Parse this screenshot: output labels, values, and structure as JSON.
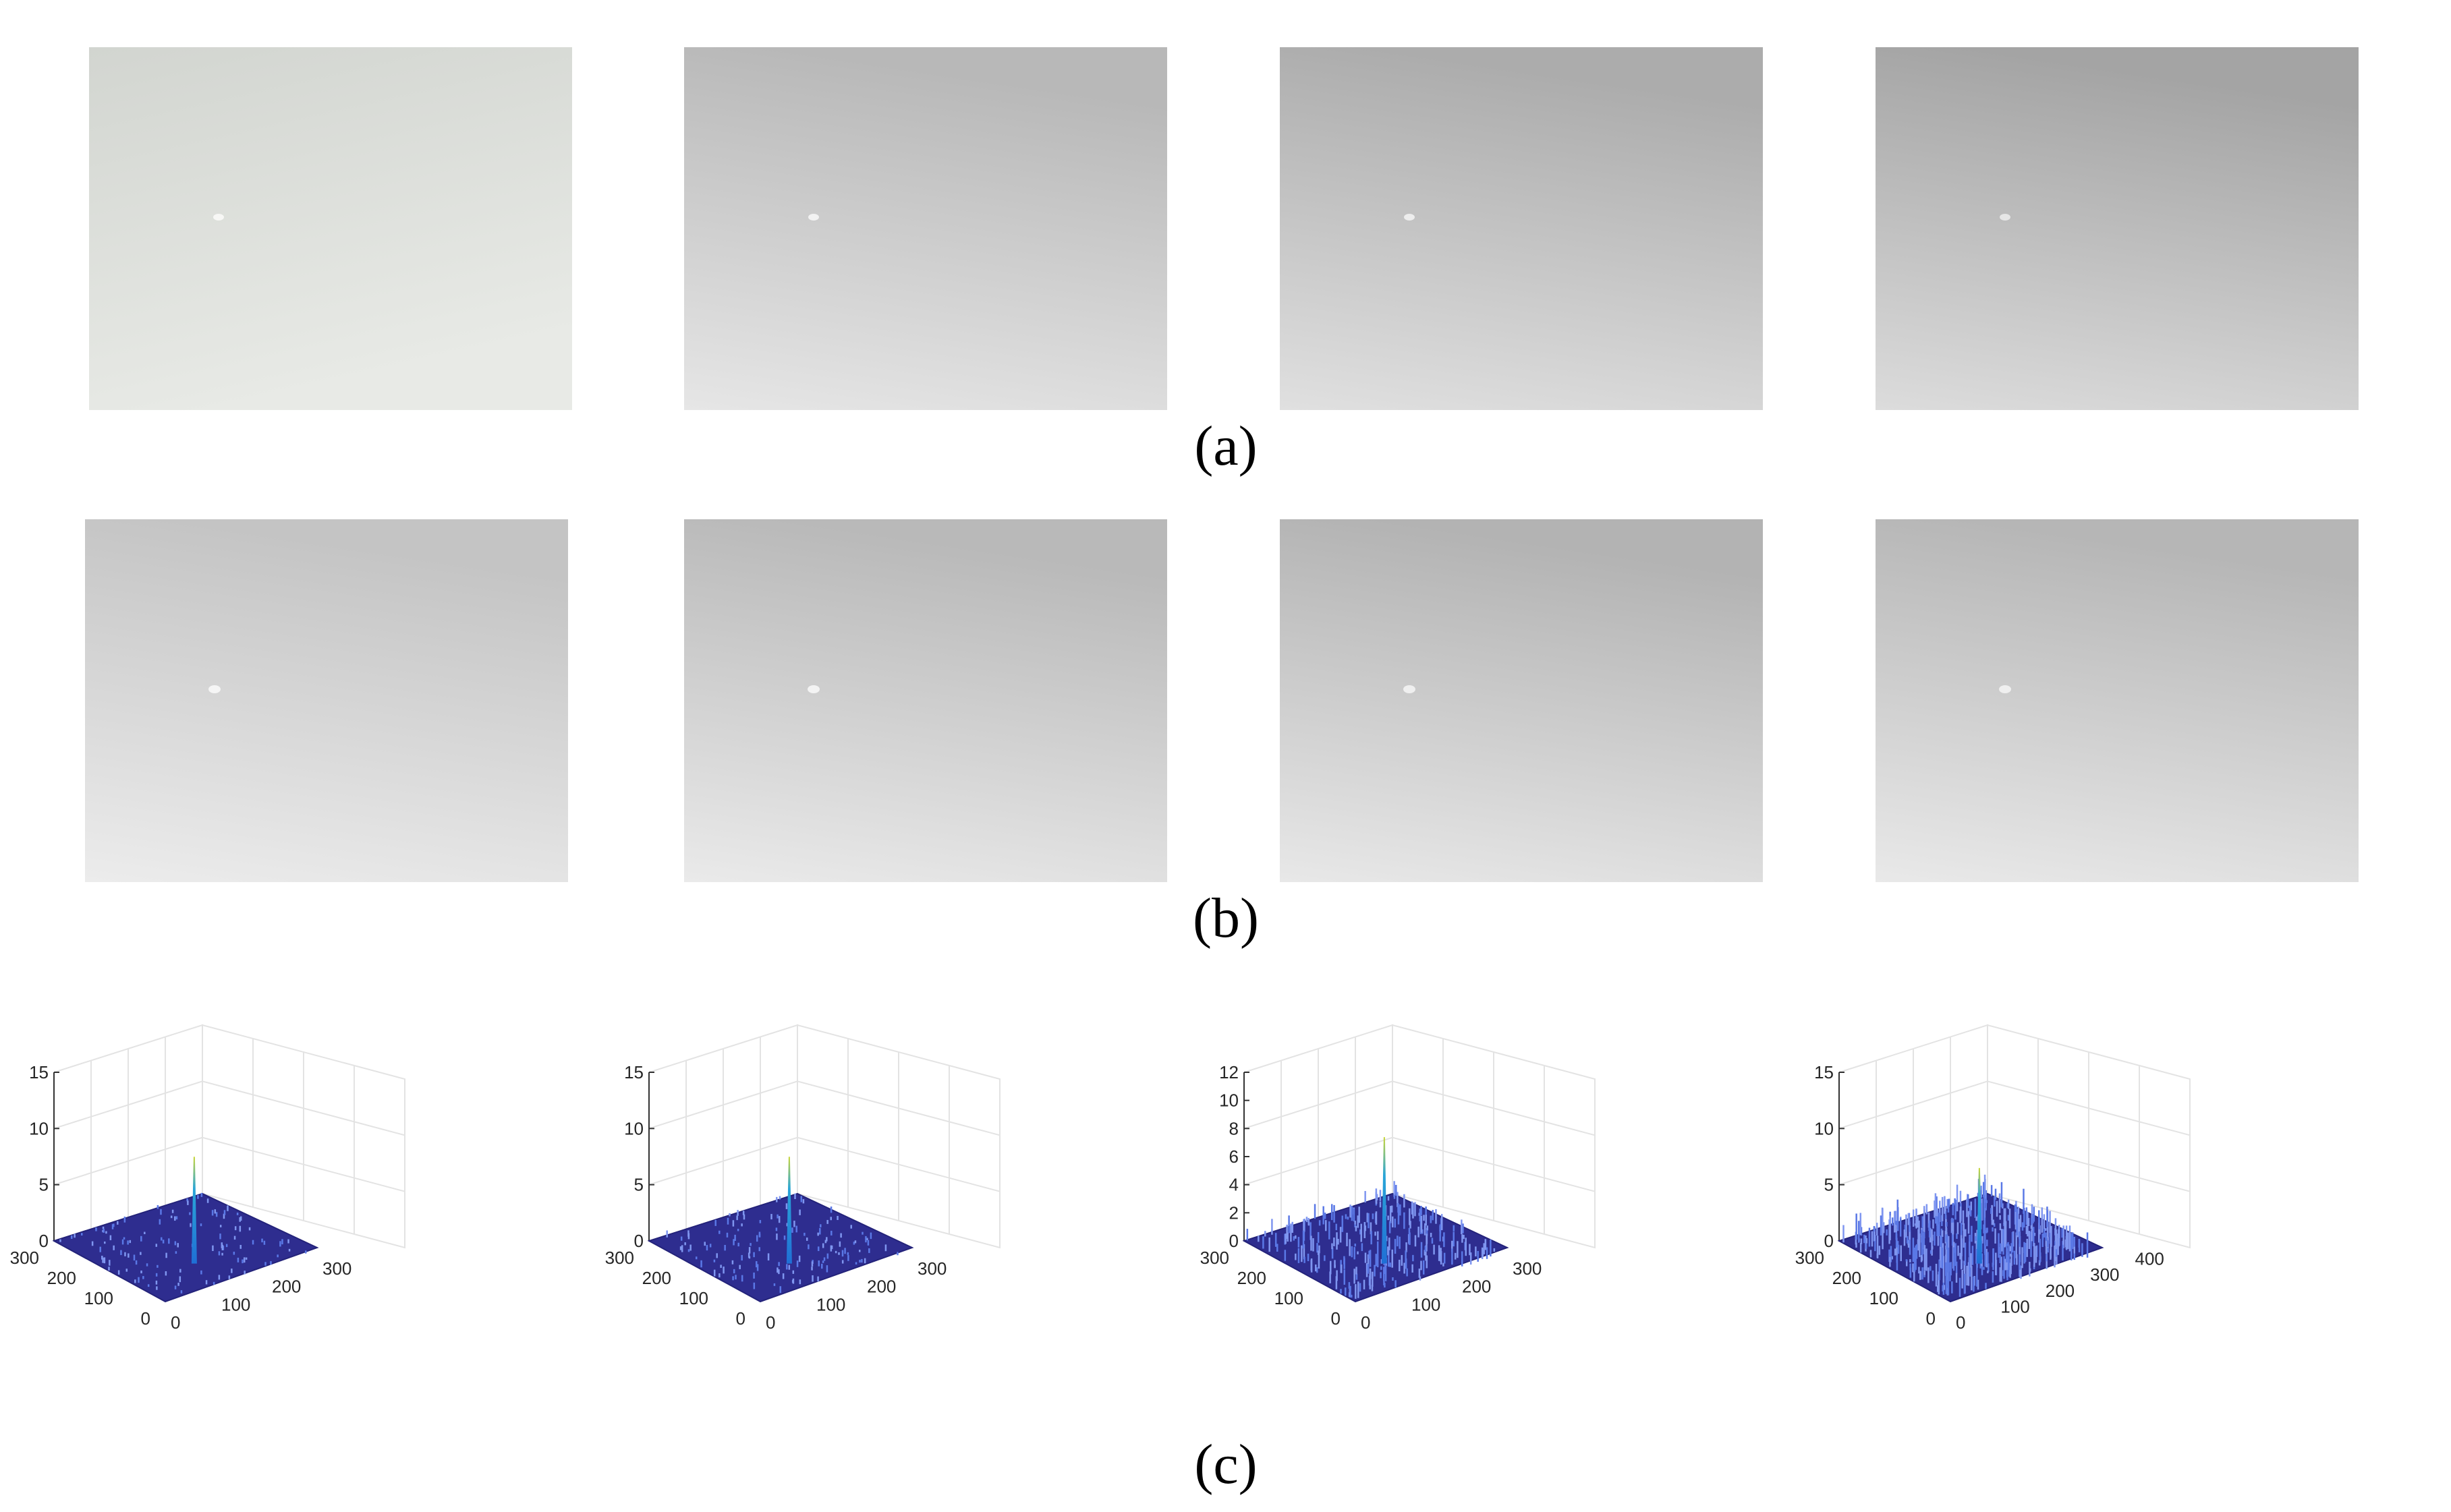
{
  "captions": {
    "a": "(a)",
    "b": "(b)",
    "c": "(c)"
  },
  "colors": {
    "surface_floor": "#2e2d8f",
    "surface_spike_base": "#1f6fd6",
    "surface_spike_tip": "#c9d63a",
    "grid": "#e3e3e3",
    "axis": "#333333"
  },
  "surface_plots": [
    {
      "zticks": [
        "15",
        "10",
        "5",
        "0"
      ],
      "zmax": 15,
      "peak": 9.5,
      "noise": 0.15,
      "yticks": [
        "300",
        "200",
        "100",
        "0"
      ],
      "xticks": [
        "0",
        "100",
        "200",
        "300"
      ]
    },
    {
      "zticks": [
        "15",
        "10",
        "5",
        "0"
      ],
      "zmax": 15,
      "peak": 9.5,
      "noise": 0.2,
      "yticks": [
        "300",
        "200",
        "100",
        "0"
      ],
      "xticks": [
        "0",
        "100",
        "200",
        "300"
      ]
    },
    {
      "zticks": [
        "12",
        "10",
        "8",
        "6",
        "4",
        "2",
        "0"
      ],
      "zmax": 12,
      "peak": 9.0,
      "noise": 0.5,
      "yticks": [
        "300",
        "200",
        "100",
        "0"
      ],
      "xticks": [
        "0",
        "100",
        "200",
        "300"
      ]
    },
    {
      "zticks": [
        "15",
        "10",
        "5",
        "0"
      ],
      "zmax": 15,
      "peak": 8.5,
      "noise": 1.0,
      "yticks": [
        "300",
        "200",
        "100",
        "0"
      ],
      "xticks": [
        "0",
        "100",
        "200",
        "300",
        "400"
      ]
    }
  ]
}
